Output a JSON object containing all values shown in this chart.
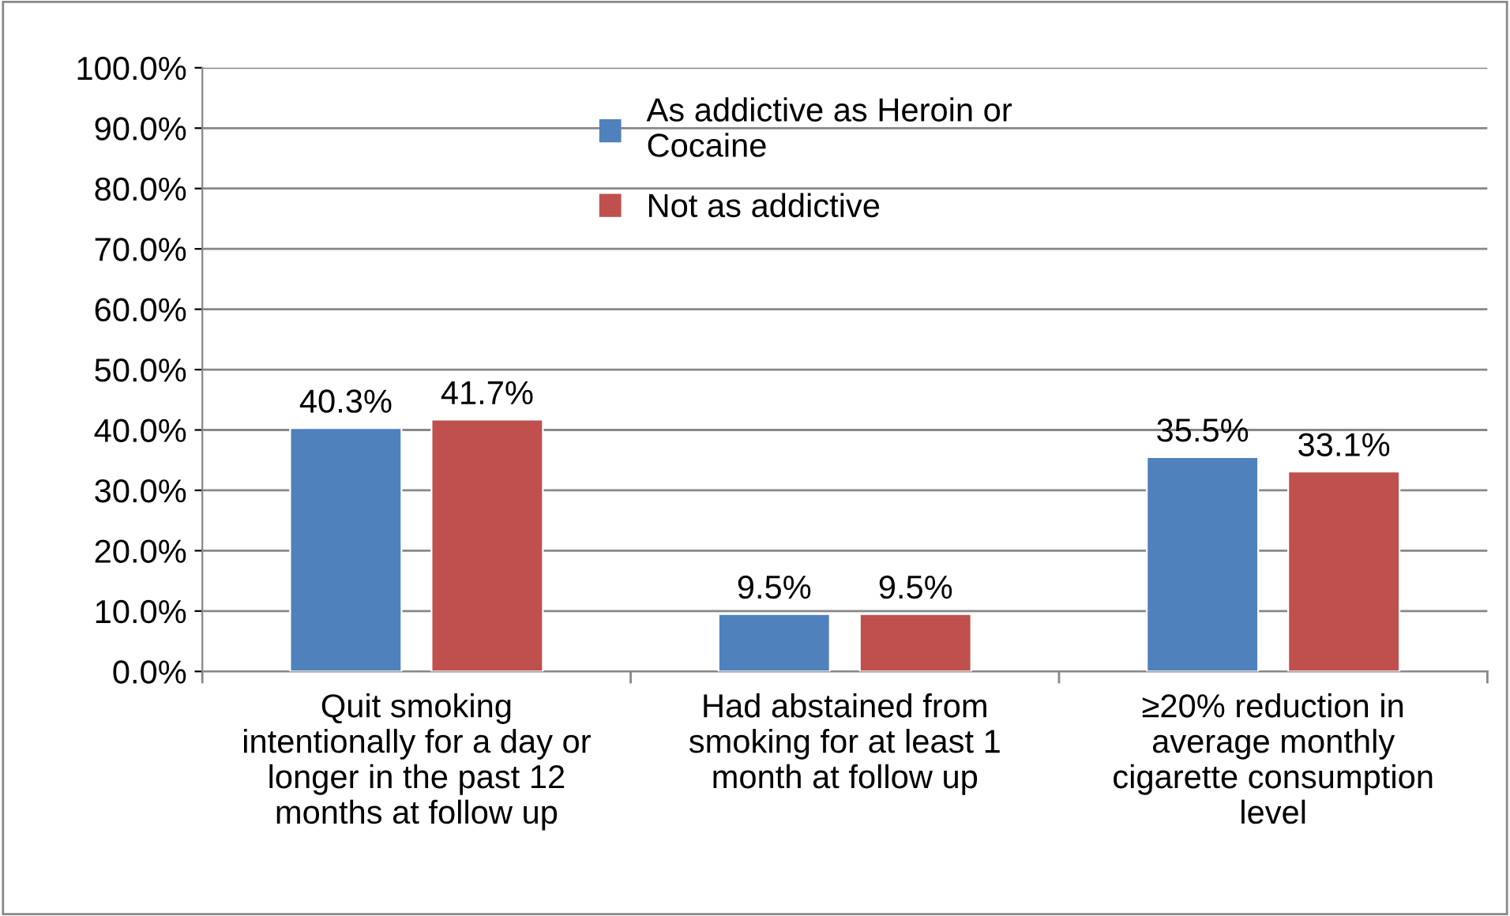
{
  "chart_data": {
    "type": "bar",
    "categories": [
      "Quit smoking\nintentionally for a day or\nlonger in the past 12\nmonths at follow up",
      "Had abstained from\nsmoking for at least 1\nmonth at follow up",
      "≥20% reduction in\naverage monthly\ncigarette consumption\nlevel"
    ],
    "series": [
      {
        "name": "As addictive as Heroin or\nCocaine",
        "color": "#4f81bd",
        "values": [
          40.3,
          9.5,
          35.5
        ],
        "value_labels": [
          "40.3%",
          "9.5%",
          "35.5%"
        ]
      },
      {
        "name": "Not as addictive",
        "color": "#c0504d",
        "values": [
          41.7,
          9.5,
          33.1
        ],
        "value_labels": [
          "41.7%",
          "9.5%",
          "33.1%"
        ]
      }
    ],
    "ylim": [
      0,
      100
    ],
    "yticks": [
      {
        "value": 0,
        "label": "0.0%"
      },
      {
        "value": 10,
        "label": "10.0%"
      },
      {
        "value": 20,
        "label": "20.0%"
      },
      {
        "value": 30,
        "label": "30.0%"
      },
      {
        "value": 40,
        "label": "40.0%"
      },
      {
        "value": 50,
        "label": "50.0%"
      },
      {
        "value": 60,
        "label": "60.0%"
      },
      {
        "value": 70,
        "label": "70.0%"
      },
      {
        "value": 80,
        "label": "80.0%"
      },
      {
        "value": 90,
        "label": "90.0%"
      },
      {
        "value": 100,
        "label": "100.0%"
      }
    ],
    "grid": "y",
    "legend": "top"
  }
}
